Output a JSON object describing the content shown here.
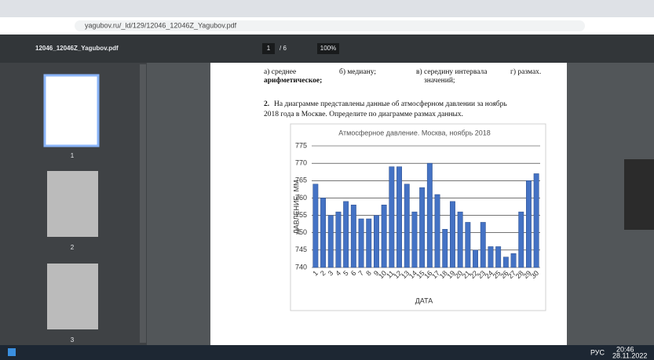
{
  "browser": {
    "url": "yagubov.ru/_ld/129/12046_12046Z_Yagubov.pdf"
  },
  "pdf_viewer": {
    "file_name": "12046_12046Z_Yagubov.pdf",
    "page": "1",
    "page_count": "/ 6",
    "zoom": "100%",
    "thumbnails": [
      "1",
      "2",
      "3"
    ]
  },
  "document": {
    "options": [
      [
        "а) среднее",
        "арифметическое;"
      ],
      [
        "б) медиану;"
      ],
      [
        "в) середину интервала",
        "значений;"
      ],
      [
        "г) размах."
      ]
    ],
    "question_number": "2.",
    "question_lines": [
      "На диаграмме представлены данные об атмосферном давлении за ноябрь",
      "2018 года в Москве. Определите по диаграмме размах данных."
    ]
  },
  "chart_data": {
    "type": "bar",
    "title": "Атмосферное давление. Москва, ноябрь 2018",
    "x_label": "ДАТА",
    "y_label": "ДАВЛЕНИЕ, ММ",
    "categories": [
      "1",
      "2",
      "3",
      "4",
      "5",
      "6",
      "7",
      "8",
      "9",
      "10",
      "11",
      "12",
      "13",
      "14",
      "15",
      "16",
      "17",
      "18",
      "19",
      "20",
      "21",
      "22",
      "23",
      "24",
      "25",
      "26",
      "27",
      "28",
      "29",
      "30"
    ],
    "values": [
      764,
      760,
      755,
      756,
      759,
      758,
      754,
      754,
      755,
      758,
      769,
      769,
      764,
      756,
      763,
      770,
      761,
      751,
      759,
      756,
      753,
      745,
      753,
      746,
      746,
      743,
      744,
      756,
      765,
      767
    ],
    "color": "#4472c4",
    "ylim": [
      740,
      775
    ],
    "yticks": [
      740,
      745,
      750,
      755,
      760,
      765,
      770,
      775
    ],
    "grid": true
  },
  "taskbar": {
    "language": "РУС",
    "time": "20:46",
    "date": "28.11.2022"
  }
}
